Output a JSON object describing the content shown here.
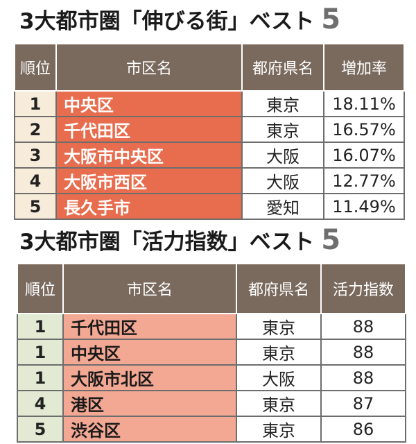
{
  "section1": {
    "title": "3大都市圏「伸びる街」ベスト",
    "title_num": "5",
    "headers": [
      "順位",
      "市区名",
      "都府県名",
      "増加率"
    ],
    "rows": [
      {
        "rank": "1",
        "city": "中央区",
        "pref": "東京",
        "value": "18.11%"
      },
      {
        "rank": "2",
        "city": "千代田区",
        "pref": "東京",
        "value": "16.57%"
      },
      {
        "rank": "3",
        "city": "大阪市中央区",
        "pref": "大阪",
        "value": "16.07%"
      },
      {
        "rank": "4",
        "city": "大阪市西区",
        "pref": "大阪",
        "value": "12.77%"
      },
      {
        "rank": "5",
        "city": "長久手市",
        "pref": "愛知",
        "value": "11.49%"
      }
    ]
  },
  "section2": {
    "title": "3大都市圏「活力指数」ベスト",
    "title_num": "5",
    "headers": [
      "順位",
      "市区名",
      "都府県名",
      "活力指数"
    ],
    "rows": [
      {
        "rank": "1",
        "city": "千代田区",
        "pref": "東京",
        "value": "88"
      },
      {
        "rank": "1",
        "city": "中央区",
        "pref": "東京",
        "value": "88"
      },
      {
        "rank": "1",
        "city": "大阪市北区",
        "pref": "大阪",
        "value": "88"
      },
      {
        "rank": "4",
        "city": "港区",
        "pref": "東京",
        "value": "87"
      },
      {
        "rank": "5",
        "city": "渋谷区",
        "pref": "東京",
        "value": "86"
      }
    ]
  },
  "colors": {
    "header_bg": "#7a6a5e",
    "table1_city_bg": "#e86d4e",
    "table1_rank_bg": "#f6ecd9",
    "table2_city_bg": "#f3a894",
    "table2_rank_bg": "#e2ead3"
  }
}
